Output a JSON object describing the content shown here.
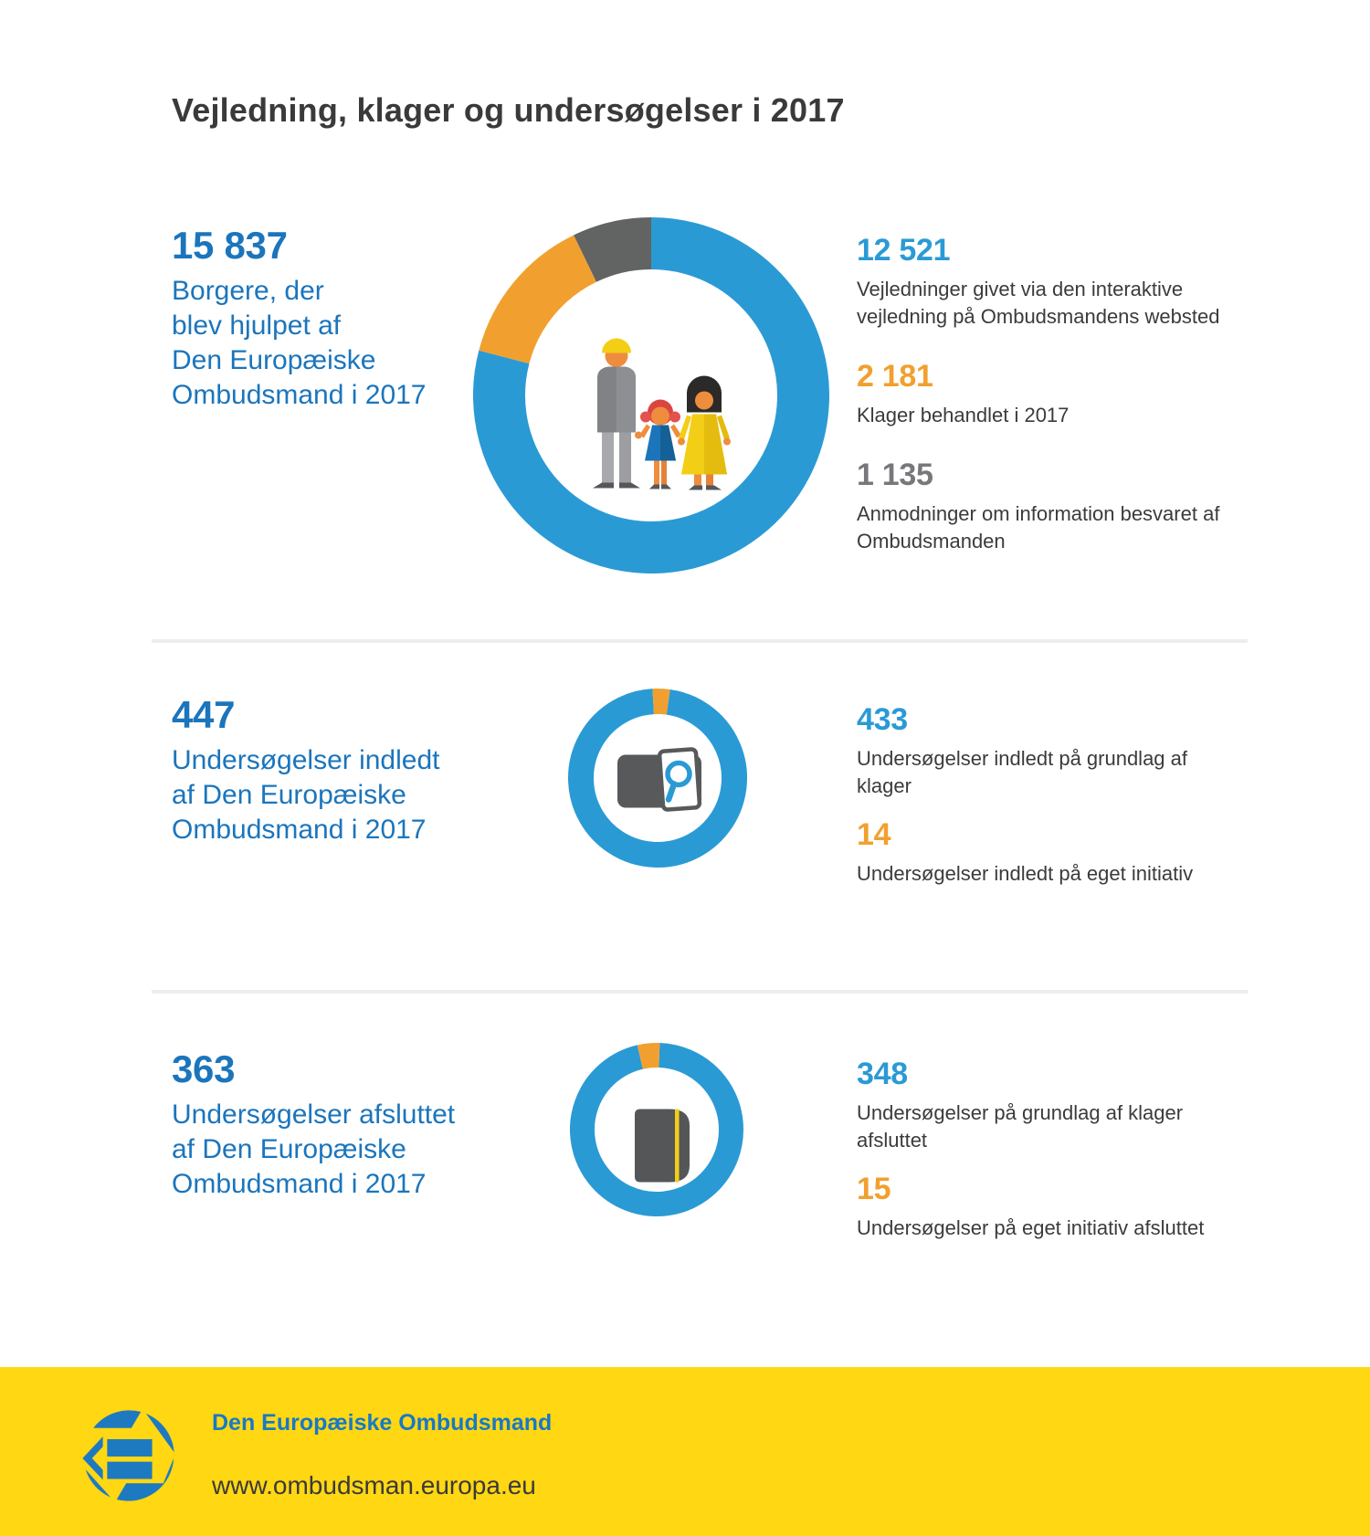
{
  "page": {
    "title": "Vejledning, klager og undersøgelser i 2017"
  },
  "colors": {
    "blue_dark": "#1B75BC",
    "blue_light": "#2A9AD5",
    "orange": "#F1A02F",
    "gray_segment": "#626363",
    "gray_number": "#77787B",
    "text": "#3B3B3B",
    "footer_yellow": "#FFD713",
    "logo_blue": "#1E7AC0",
    "divider": "#EDEDED"
  },
  "sections": [
    {
      "left": {
        "value": "15 837",
        "label": "Borgere, der\nblev hjulpet af\nDen Europæiske\nOmbudsmand i 2017"
      },
      "icon": "family-icon",
      "stats": [
        {
          "value": "12 521",
          "label": "Vejledninger givet via den interaktive\nvejledning på Ombudsmandens websted"
        },
        {
          "value": "2 181",
          "label": "Klager behandlet i 2017"
        },
        {
          "value": "1 135",
          "label": "Anmodninger om information besvaret af\nOmbudsmanden"
        }
      ]
    },
    {
      "left": {
        "value": "447",
        "label": "Undersøgelser indledt\naf Den Europæiske\nOmbudsmand i 2017"
      },
      "icon": "book-magnifier-icon",
      "stats": [
        {
          "value": "433",
          "label": "Undersøgelser indledt på grundlag af\nklager"
        },
        {
          "value": "14",
          "label": "Undersøgelser indledt på eget initiativ"
        }
      ]
    },
    {
      "left": {
        "value": "363",
        "label": "Undersøgelser afsluttet\naf Den Europæiske\nOmbudsmand i 2017"
      },
      "icon": "notebook-icon",
      "stats": [
        {
          "value": "348",
          "label": "Undersøgelser på grundlag af klager\nafsluttet"
        },
        {
          "value": "15",
          "label": "Undersøgelser på eget initiativ afsluttet"
        }
      ]
    }
  ],
  "chart_data": [
    {
      "type": "pie",
      "subtype": "donut",
      "title": "Borgere, der blev hjulpet af Den Europæiske Ombudsmand i 2017",
      "total": 15837,
      "rotation_deg": 0,
      "legend": "none",
      "segments": [
        {
          "label": "Vejledninger givet via den interaktive vejledning på Ombudsmandens websted",
          "value": 12521,
          "color": "#2A9AD5"
        },
        {
          "label": "Klager behandlet i 2017",
          "value": 2181,
          "color": "#F1A02F"
        },
        {
          "label": "Anmodninger om information besvaret af Ombudsmanden",
          "value": 1135,
          "color": "#626363"
        }
      ]
    },
    {
      "type": "pie",
      "subtype": "donut",
      "title": "Undersøgelser indledt af Den Europæiske Ombudsmand i 2017",
      "total": 447,
      "rotation_deg": 8,
      "legend": "none",
      "segments": [
        {
          "label": "Undersøgelser indledt på grundlag af klager",
          "value": 433,
          "color": "#2A9AD5"
        },
        {
          "label": "Undersøgelser indledt på eget initiativ",
          "value": 14,
          "color": "#F1A02F"
        }
      ]
    },
    {
      "type": "pie",
      "subtype": "donut",
      "title": "Undersøgelser afsluttet af Den Europæiske Ombudsmand i 2017",
      "total": 363,
      "rotation_deg": 2,
      "legend": "none",
      "segments": [
        {
          "label": "Undersøgelser på grundlag af klager afsluttet",
          "value": 348,
          "color": "#2A9AD5"
        },
        {
          "label": "Undersøgelser på eget initiativ afsluttet",
          "value": 15,
          "color": "#F1A02F"
        }
      ]
    }
  ],
  "footer": {
    "org": "Den Europæiske Ombudsmand",
    "url": "www.ombudsman.europa.eu"
  }
}
